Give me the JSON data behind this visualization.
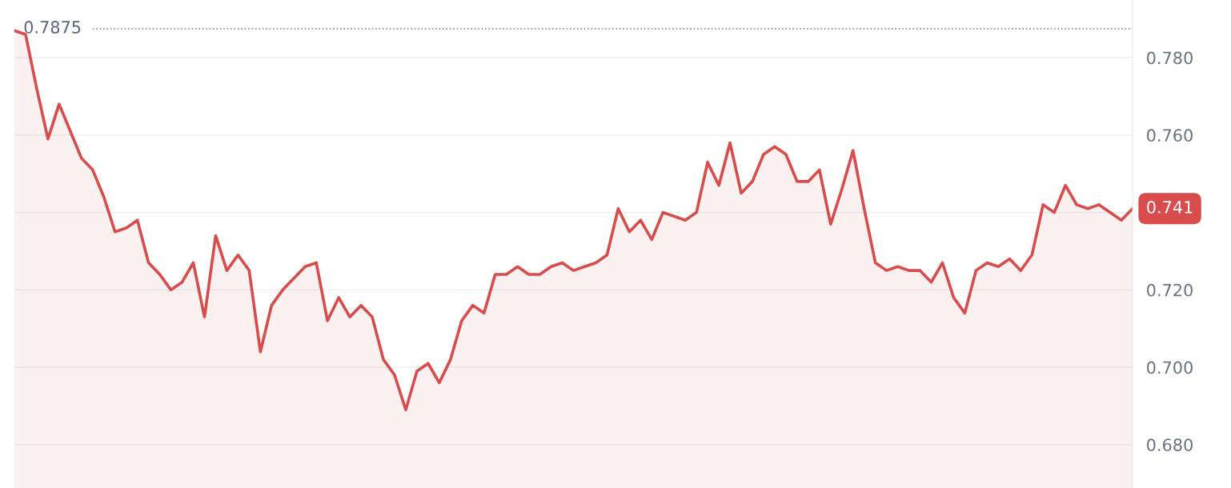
{
  "chart_data": {
    "type": "area",
    "categories": [
      null,
      null,
      null,
      null,
      null,
      null,
      null,
      null,
      null,
      null,
      null,
      null,
      null,
      null,
      null,
      null,
      null,
      null,
      null,
      null,
      null,
      null,
      null,
      null,
      null,
      null,
      null,
      null,
      null,
      null,
      null,
      null,
      null,
      null,
      null,
      null,
      null,
      null,
      null,
      null,
      null,
      null,
      null,
      null,
      null,
      null,
      null,
      null,
      null,
      null,
      null,
      null,
      null,
      null,
      null,
      null,
      null,
      null,
      null,
      null,
      null,
      null,
      null,
      null,
      null,
      null,
      null,
      null,
      null,
      null,
      null,
      null,
      null,
      null,
      null,
      null,
      null,
      null,
      null,
      null,
      null,
      null,
      null,
      null,
      null,
      null,
      null,
      null,
      null,
      null,
      null,
      null,
      null,
      null,
      null,
      null,
      null,
      null,
      null,
      null,
      null
    ],
    "series": [
      {
        "color": "#d94c4c",
        "values": [
          0.787,
          0.786,
          0.772,
          0.759,
          0.768,
          0.761,
          0.754,
          0.751,
          0.744,
          0.735,
          0.736,
          0.738,
          0.727,
          0.724,
          0.72,
          0.722,
          0.727,
          0.713,
          0.734,
          0.725,
          0.729,
          0.725,
          0.704,
          0.716,
          0.72,
          0.723,
          0.726,
          0.727,
          0.712,
          0.718,
          0.713,
          0.716,
          0.713,
          0.702,
          0.698,
          0.689,
          0.699,
          0.701,
          0.696,
          0.702,
          0.712,
          0.716,
          0.714,
          0.724,
          0.724,
          0.726,
          0.724,
          0.724,
          0.726,
          0.727,
          0.725,
          0.726,
          0.727,
          0.729,
          0.741,
          0.735,
          0.738,
          0.733,
          0.74,
          0.739,
          0.738,
          0.74,
          0.753,
          0.747,
          0.758,
          0.745,
          0.748,
          0.755,
          0.757,
          0.755,
          0.748,
          0.748,
          0.751,
          0.737,
          0.746,
          0.756,
          0.741,
          0.727,
          0.725,
          0.726,
          0.725,
          0.725,
          0.722,
          0.727,
          0.718,
          0.714,
          0.725,
          0.727,
          0.726,
          0.728,
          0.725,
          0.729,
          0.742,
          0.74,
          0.747,
          0.742,
          0.741,
          0.742,
          0.74,
          0.738,
          0.741
        ]
      }
    ],
    "ylim": [
      0.6688,
      0.7949
    ],
    "yticks": [
      {
        "value": 0.68,
        "label": "0.680"
      },
      {
        "value": 0.7,
        "label": "0.700"
      },
      {
        "value": 0.72,
        "label": "0.720"
      },
      {
        "value": 0.74,
        "label": null
      },
      {
        "value": 0.76,
        "label": "0.760"
      },
      {
        "value": 0.78,
        "label": "0.780"
      }
    ],
    "grid": "y",
    "ref_lines": [
      {
        "axis": "y",
        "value": 0.7875,
        "label": "0.7875",
        "color": "#8c93a8",
        "line_style": "dotted"
      }
    ],
    "annotations": [
      "0.741"
    ]
  }
}
